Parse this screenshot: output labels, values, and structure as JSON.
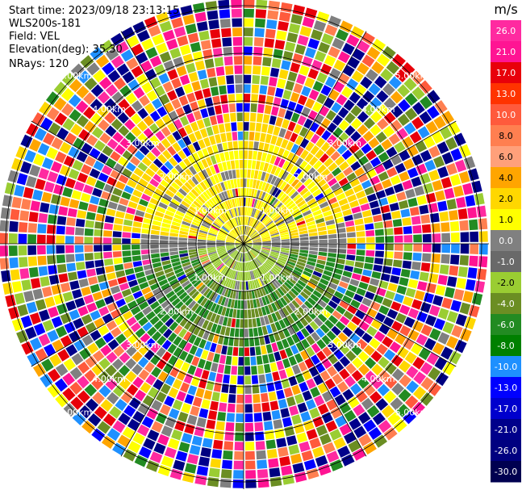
{
  "header": {
    "start_time": "Start time: 2023/09/18 23:13:15",
    "instrument": "WLS200s-181",
    "field": "Field: VEL",
    "elevation": "Elevation(deg): 35.30",
    "nrays": "NRays: 120"
  },
  "chart_data": {
    "type": "heatmap",
    "projection": "polar (PPI)",
    "field": "VEL",
    "units": "m/s",
    "nrays": 120,
    "range_ring_labels": [
      "1.00km",
      "2.00km",
      "3.00km",
      "4.00km",
      "5.00km"
    ],
    "colorbar": {
      "title": "m/s",
      "tick_labels": [
        "26.0",
        "21.0",
        "17.0",
        "13.0",
        "10.0",
        "8.0",
        "6.0",
        "4.0",
        "2.0",
        "1.0",
        "0.0",
        "-1.0",
        "-2.0",
        "-4.0",
        "-6.0",
        "-8.0",
        "-10.0",
        "-13.0",
        "-17.0",
        "-21.0",
        "-26.0",
        "-30.0"
      ],
      "colors": [
        "#ff2aa0",
        "#ff1493",
        "#e8000a",
        "#ff3300",
        "#ff5a3c",
        "#ff7f50",
        "#ffa07a",
        "#ffa500",
        "#ffd700",
        "#ffff00",
        "#808080",
        "#696969",
        "#9acd32",
        "#6b8e23",
        "#228b22",
        "#008000",
        "#1e90ff",
        "#0000ff",
        "#0000cd",
        "#00008b",
        "#000080",
        "#000050"
      ]
    }
  }
}
